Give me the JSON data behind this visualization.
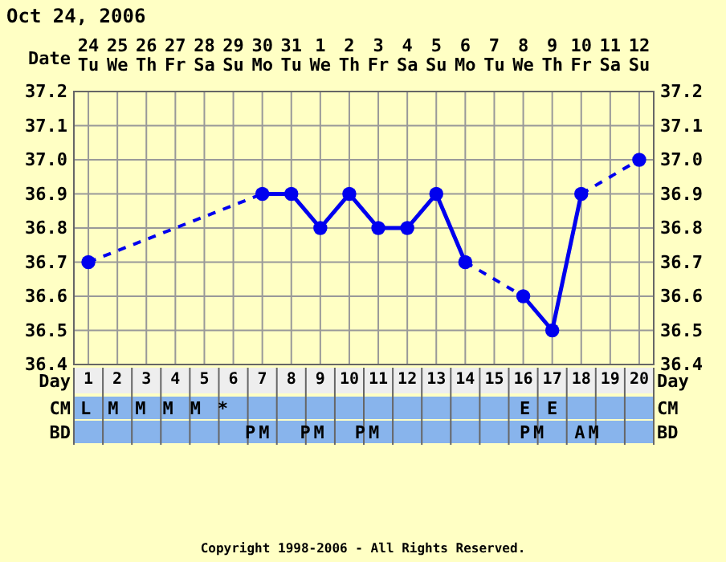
{
  "chart_data": {
    "type": "line",
    "title": "Oct 24, 2006",
    "x": [
      1,
      2,
      3,
      4,
      5,
      6,
      7,
      8,
      9,
      10,
      11,
      12,
      13,
      14,
      15,
      16,
      17,
      18,
      19,
      20
    ],
    "xlim": [
      0.5,
      20.5
    ],
    "xticks": [
      1,
      2,
      3,
      4,
      5,
      6,
      7,
      8,
      9,
      10,
      11,
      12,
      13,
      14,
      15,
      16,
      17,
      18,
      19,
      20
    ],
    "xlabel": "Day",
    "x2label": "Date",
    "x2lim": [
      "2006-10-23T12:00",
      "2006-11-12T12:00"
    ],
    "x2ticks": [
      {
        "value": "2006-10-24",
        "label": "24 Tu"
      },
      {
        "value": "2006-10-25",
        "label": "25 We"
      },
      {
        "value": "2006-10-26",
        "label": "26 Th"
      },
      {
        "value": "2006-10-27",
        "label": "27 Fr"
      },
      {
        "value": "2006-10-28",
        "label": "28 Sa"
      },
      {
        "value": "2006-10-29",
        "label": "29 Su"
      },
      {
        "value": "2006-10-30",
        "label": "30 Mo"
      },
      {
        "value": "2006-10-31",
        "label": "31 Tu"
      },
      {
        "value": "2006-11-01",
        "label": "1 We"
      },
      {
        "value": "2006-11-02",
        "label": "2 Th"
      },
      {
        "value": "2006-11-03",
        "label": "3 Fr"
      },
      {
        "value": "2006-11-04",
        "label": "4 Sa"
      },
      {
        "value": "2006-11-05",
        "label": "5 Su"
      },
      {
        "value": "2006-11-06",
        "label": "6 Mo"
      },
      {
        "value": "2006-11-07",
        "label": "7 Tu"
      },
      {
        "value": "2006-11-08",
        "label": "8 We"
      },
      {
        "value": "2006-11-09",
        "label": "9 Th"
      },
      {
        "value": "2006-11-10",
        "label": "10 Fr"
      },
      {
        "value": "2006-11-11",
        "label": "11 Sa"
      },
      {
        "value": "2006-11-12",
        "label": "12 Su"
      }
    ],
    "series": [
      {
        "color": "#0000ee",
        "values": [
          36.7,
          null,
          null,
          null,
          null,
          null,
          36.9,
          36.9,
          36.8,
          36.9,
          36.8,
          36.8,
          36.9,
          36.7,
          null,
          36.6,
          36.5,
          36.9,
          null,
          37.0
        ]
      }
    ],
    "ylim": [
      36.4,
      37.2
    ],
    "yticks": [
      36.4,
      36.5,
      36.6,
      36.7,
      36.8,
      36.9,
      {
        "value": 37.0,
        "label": "37.0"
      },
      37.1,
      37.2
    ],
    "y2lim": [
      36.4,
      37.2
    ],
    "y2ticks": [
      36.4,
      36.5,
      36.6,
      36.7,
      36.8,
      36.9,
      {
        "value": 37.0,
        "label": "37.0"
      },
      37.1,
      37.2
    ],
    "grid": true,
    "marker": "circle",
    "line_style": "solid",
    "annotations": [
      "CM",
      "L M M M M *                     E E       ",
      "BD",
      "            PM  PM  PM          PM  AM    ",
      "Copyright 1998-2006 - All Rights Reserved."
    ]
  }
}
